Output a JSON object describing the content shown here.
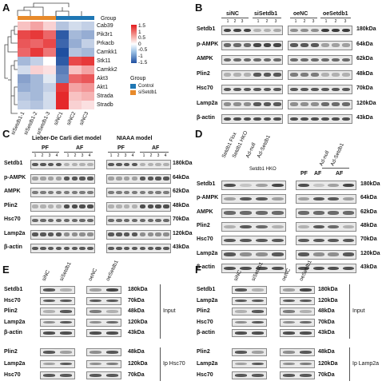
{
  "panels": {
    "A": "A",
    "B": "B",
    "C": "C",
    "D": "D",
    "E": "E",
    "F": "F"
  },
  "heatmap": {
    "columns": [
      "siSetdb1-1",
      "siSetdb1-2",
      "siSetdb1-3",
      "siNC1",
      "siNC2",
      "siNC3"
    ],
    "rows": [
      "Cab39",
      "Pik3r1",
      "Prkacb",
      "Camkk1",
      "Stk11",
      "Camkk2",
      "Akt3",
      "Akt1",
      "Strada",
      "Stradb"
    ],
    "scale_labels": [
      "1.5",
      "1",
      "0.5",
      "0",
      "-0.5",
      "-1",
      "-1.5"
    ],
    "group_title": "Group",
    "legend_title": "Group",
    "legend_items": [
      {
        "label": "Control",
        "color": "#1f77b4"
      },
      {
        "label": "siSetdb1",
        "color": "#e88a2a"
      }
    ],
    "values": [
      [
        0.4,
        0.6,
        0.3,
        -0.5,
        -0.3,
        -0.4
      ],
      [
        1.2,
        1.3,
        1.0,
        -1.4,
        -0.6,
        -0.7
      ],
      [
        1.1,
        1.0,
        1.2,
        -1.3,
        -0.7,
        -0.4
      ],
      [
        1.0,
        1.3,
        0.9,
        -1.5,
        -0.5,
        -0.6
      ],
      [
        -0.6,
        -0.4,
        0.0,
        -1.4,
        1.2,
        1.3
      ],
      [
        -0.3,
        0.3,
        0.2,
        -1.1,
        0.4,
        0.6
      ],
      [
        -0.8,
        -0.6,
        -0.2,
        -1.0,
        1.0,
        1.1
      ],
      [
        -0.7,
        -0.6,
        -0.4,
        1.3,
        0.6,
        0.7
      ],
      [
        -0.5,
        -0.6,
        -0.3,
        1.4,
        0.4,
        0.5
      ],
      [
        -0.4,
        -0.5,
        -0.3,
        1.4,
        0.3,
        0.2
      ]
    ]
  },
  "panelB": {
    "groups": [
      "siNC",
      "siSetdb1",
      "oeNC",
      "oeSetdb1"
    ],
    "lanes": [
      "1",
      "2",
      "3",
      "1",
      "2",
      "3",
      "1",
      "2",
      "3",
      "1",
      "2",
      "3"
    ],
    "rows": [
      "Setdb1",
      "p-AMPK",
      "AMPK",
      "Plin2",
      "Hsc70",
      "Lamp2a",
      "β-actin"
    ],
    "kda": [
      "180kDa",
      "64kDa",
      "62kDa",
      "48kDa",
      "70kDa",
      "120kDa",
      "43kDa"
    ]
  },
  "panelC": {
    "titles": [
      "Lieber-De Carli diet model",
      "NIAAA model"
    ],
    "groups": [
      "PF",
      "AF",
      "PF",
      "AF"
    ],
    "lanes": [
      "1",
      "2",
      "3",
      "4",
      "1",
      "2",
      "3",
      "4",
      "1",
      "2",
      "3",
      "4",
      "1",
      "2",
      "3",
      "4"
    ],
    "rows": [
      "Setdb1",
      "p-AMPK",
      "AMPK",
      "Plin2",
      "Hsc70",
      "Lamp2a",
      "β-actin"
    ],
    "kda": [
      "180kDa",
      "64kDa",
      "62kDa",
      "48kDa",
      "70kDa",
      "120kDa",
      "43kDa"
    ]
  },
  "panelD": {
    "col_labels": [
      "Setdb1 Flox",
      "Setdb1 HKO",
      "Ad-null",
      "Ad-Setdb1"
    ],
    "sub_labels": [
      "Setdb1 HKO",
      "Ad-null",
      "Ad-Setdb1"
    ],
    "groups": [
      "PF",
      "AF",
      "AF"
    ],
    "rows": [
      "Setdb1",
      "p-AMPK",
      "AMPK",
      "Plin2",
      "Hsc70",
      "Lamp2a",
      "β-actin"
    ],
    "kda": [
      "180kDa",
      "64kDa",
      "62kDa",
      "48kDa",
      "70kDa",
      "120kDa",
      "43kDa"
    ]
  },
  "panelE": {
    "col_labels": [
      "siNC",
      "siSetdb1",
      "oeNC",
      "oeSetdb1"
    ],
    "input_rows": [
      "Setdb1",
      "Hsc70",
      "Plin2",
      "Lamp2a",
      "β-actin"
    ],
    "input_kda": [
      "180kDa",
      "70kDa",
      "48kDa",
      "120kDa",
      "43kDa"
    ],
    "ip_rows": [
      "Plin2",
      "Lamp2a",
      "Hsc70"
    ],
    "ip_kda": [
      "48kDa",
      "120kDa",
      "70kDa"
    ],
    "input_label": "Input",
    "ip_label": "Ip Hsc70"
  },
  "panelF": {
    "col_labels": [
      "siNC",
      "siSetdb1",
      "oeNC",
      "oeSetdb1"
    ],
    "input_rows": [
      "Setdb1",
      "Lamp2a",
      "Plin2",
      "Hsc70",
      "β-actin"
    ],
    "input_kda": [
      "180kDa",
      "120kDa",
      "48kDa",
      "70kDa",
      "43kDa"
    ],
    "ip_rows": [
      "Plin2",
      "Lamp2a",
      "Hsc70"
    ],
    "ip_kda": [
      "48kDa",
      "120kDa",
      "70kDa"
    ],
    "input_label": "Input",
    "ip_label": "Ip Lamp2a"
  }
}
